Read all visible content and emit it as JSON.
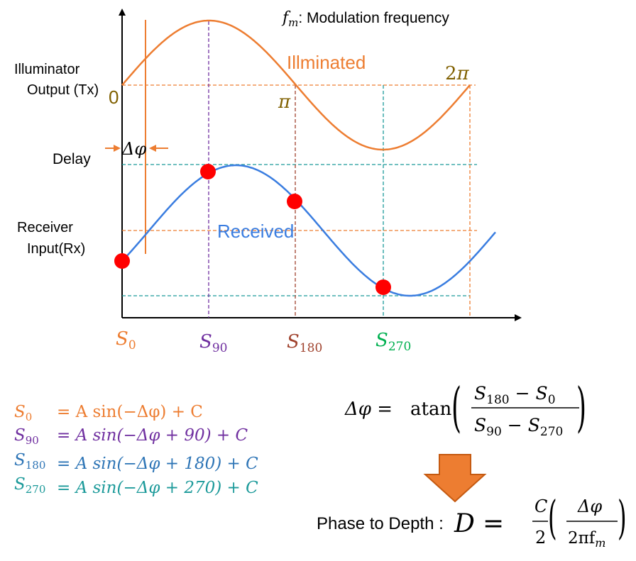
{
  "colors": {
    "illuminated": "#ED7D31",
    "received": "#3A7DE0",
    "s0": "#ED7D31",
    "s90": "#7030A0",
    "s180": "#A0432E",
    "s270": "#00B050",
    "teal": "#1C9A9A",
    "label_brown": "#806000",
    "sample_point": "#FF0000",
    "arrow_fill": "#ED7D31",
    "arrow_stroke": "#C55A11"
  },
  "header": {
    "fm_symbol": "f",
    "fm_sub": "m",
    "fm_text": ": Modulation frequency"
  },
  "left_labels": {
    "illuminator_line1": "Illuminator",
    "illuminator_line2": "Output  (Tx)",
    "delay": "Delay",
    "receiver_line1": "Receiver",
    "receiver_line2": "Input(Rx)"
  },
  "wave_labels": {
    "illuminated": "Illminated",
    "received": "Received",
    "zero": "0",
    "pi": "π",
    "two_pi_num": "2",
    "two_pi_sym": "π",
    "delta_phi": "Δφ"
  },
  "x_labels": [
    {
      "base": "S",
      "sub": "0"
    },
    {
      "base": "S",
      "sub": "90"
    },
    {
      "base": "S",
      "sub": "180"
    },
    {
      "base": "S",
      "sub": "270"
    }
  ],
  "equations": [
    {
      "s": "S",
      "sub": "0",
      "pad": "    ",
      "rhs": "= A sin(−Δφ) + C"
    },
    {
      "s": "S",
      "sub": "90",
      "pad": "  ",
      "rhs": "= A sin(−Δφ + 90) + C"
    },
    {
      "s": "S",
      "sub": "180",
      "pad": "",
      "rhs": "= A sin(−Δφ + 180) + C"
    },
    {
      "s": "S",
      "sub": "270",
      "pad": "",
      "rhs": "= A sin(−Δφ + 270) + C"
    }
  ],
  "formula": {
    "lhs": "Δφ =",
    "atan": "atan",
    "num_a": "S",
    "num_a_sub": "180",
    "num_op": "−",
    "num_b": "S",
    "num_b_sub": "0",
    "den_a": "S",
    "den_a_sub": "90",
    "den_op": "−",
    "den_b": "S",
    "den_b_sub": "270"
  },
  "depth": {
    "label": "Phase to Depth :",
    "var": "D",
    "eq": "=",
    "c": "C",
    "two": "2",
    "dphi": "Δφ",
    "denom": "2πf",
    "denom_sub": "m"
  }
}
